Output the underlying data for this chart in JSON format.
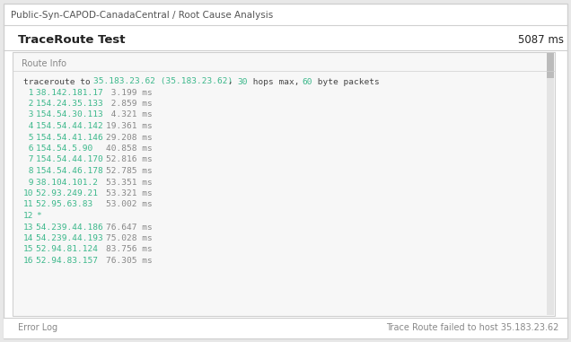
{
  "page_title": "Public-Syn-CAPOD-CanadaCentral / Root Cause Analysis",
  "section_title": "TraceRoute Test",
  "section_value": "5087 ms",
  "panel_label": "Route Info",
  "header_parts": [
    {
      "text": "traceroute to ",
      "color": "#444444"
    },
    {
      "text": "35.183.23.62 (35.183.23.62)",
      "color": "#3cb88b"
    },
    {
      "text": ", ",
      "color": "#444444"
    },
    {
      "text": "30",
      "color": "#3cb88b"
    },
    {
      "text": " hops max, ",
      "color": "#444444"
    },
    {
      "text": "60",
      "color": "#3cb88b"
    },
    {
      "text": " byte packets",
      "color": "#444444"
    }
  ],
  "rows": [
    {
      "num": " 1",
      "ip": "38.142.181.17 ",
      "time": " 3.199 ms"
    },
    {
      "num": " 2",
      "ip": "154.24.35.133 ",
      "time": " 2.859 ms"
    },
    {
      "num": " 3",
      "ip": "154.54.30.113 ",
      "time": " 4.321 ms"
    },
    {
      "num": " 4",
      "ip": "154.54.44.142 ",
      "time": "19.361 ms"
    },
    {
      "num": " 5",
      "ip": "154.54.41.146 ",
      "time": "29.208 ms"
    },
    {
      "num": " 6",
      "ip": "154.54.5.90   ",
      "time": "40.858 ms"
    },
    {
      "num": " 7",
      "ip": "154.54.44.170 ",
      "time": "52.816 ms"
    },
    {
      "num": " 8",
      "ip": "154.54.46.178 ",
      "time": "52.785 ms"
    },
    {
      "num": " 9",
      "ip": "38.104.101.2  ",
      "time": "53.351 ms"
    },
    {
      "num": "10",
      "ip": "52.93.249.21  ",
      "time": "53.321 ms"
    },
    {
      "num": "11",
      "ip": "52.95.63.83   ",
      "time": "53.002 ms"
    },
    {
      "num": "12",
      "ip": "*",
      "time": ""
    },
    {
      "num": "13",
      "ip": "54.239.44.186 ",
      "time": "76.647 ms"
    },
    {
      "num": "14",
      "ip": "54.239.44.193 ",
      "time": "75.028 ms"
    },
    {
      "num": "15",
      "ip": "52.94.81.124  ",
      "time": "83.756 ms"
    },
    {
      "num": "16",
      "ip": "52.94.83.157  ",
      "time": "76.305 ms"
    }
  ],
  "footer_left": "Error Log",
  "footer_right": "Trace Route failed to host 35.183.23.62",
  "bg_outer": "#e8e8e8",
  "bg_page": "#ffffff",
  "bg_inner": "#f7f7f7",
  "color_green": "#3cb88b",
  "color_dark": "#444444",
  "color_gray": "#888888",
  "color_section_title": "#222222",
  "color_page_title": "#555555",
  "scrollbar_track": "#e4e4e4",
  "scrollbar_thumb": "#bbbbbb",
  "border_color": "#d0d0d0"
}
